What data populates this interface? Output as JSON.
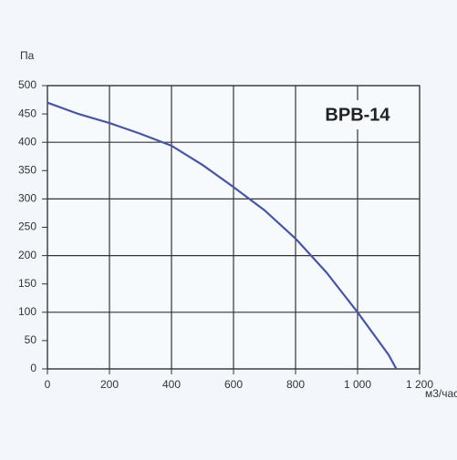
{
  "chart_data": {
    "type": "line",
    "title": "ВРВ-14",
    "y_label": "Па",
    "x_label": "м3/час",
    "x": [
      0,
      100,
      200,
      300,
      400,
      500,
      600,
      700,
      800,
      900,
      1000,
      1100,
      1125
    ],
    "series": [
      {
        "name": "ВРВ-14",
        "color": "#4a55a0",
        "values": [
          470,
          450,
          434,
          415,
          394,
          360,
          321,
          280,
          230,
          170,
          100,
          25,
          0
        ]
      }
    ],
    "xlim": [
      0,
      1200
    ],
    "xticks": [
      0,
      200,
      400,
      600,
      800,
      {
        "value": 1000,
        "label": "1 000"
      },
      {
        "value": 1200,
        "label": "1 200"
      }
    ],
    "ylim": [
      0,
      500
    ],
    "yticks": [
      0,
      50,
      100,
      150,
      200,
      250,
      300,
      350,
      400,
      450,
      500
    ],
    "grid": true
  }
}
